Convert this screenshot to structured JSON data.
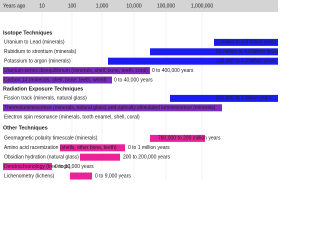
{
  "axis": {
    "title": "Years ago",
    "labels": [
      "10",
      "100",
      "1,000",
      "10,000",
      "100,000",
      "1,000,000"
    ]
  },
  "sections": [
    {
      "title": "Isotope Techniques",
      "rows": [
        {
          "label": "Uranium to Lead (minerals)",
          "range": "1 million to 4.5 billion years",
          "color": "#1c1cf0"
        },
        {
          "label": "Rubidium to strontium (minerals)",
          "range": "60 million to 4.5 billion years",
          "color": "#1c1cf0"
        },
        {
          "label": "Potassium to argon (minerals)",
          "range": "100,000 to 4.5 billion years",
          "color": "#1c1cf0"
        },
        {
          "label": "Uranium-series disequilibrium (minerals, shell, bone, teeth, coral)",
          "range": "0 to 400,000 years",
          "color": "#7a2cc0"
        },
        {
          "label": "Carbon 14 (minerals, shell, bone, teeth, wood)",
          "range": "0 to 40,000 years",
          "color": "#7a2cc0"
        }
      ]
    },
    {
      "title": "Radiation Exposure Techniques",
      "rows": [
        {
          "label": "Fission track (minerals, natural glass)",
          "range": "500,000 to 1 billion years",
          "color": "#1c1cf0"
        },
        {
          "label": "Thermoluminescence (minerals, natural glass) and optically stimulated luminescence (minerals)",
          "color": "#7a2cc0"
        },
        {
          "label": "Electron spin resonance (minerals, tooth enamel, shell, coral)"
        }
      ]
    },
    {
      "title": "Other Techniques",
      "rows": [
        {
          "label": "Geomagnetic polarity timescale (minerals)",
          "range": "780,000 to 200 million years",
          "color": "#e8239a"
        },
        {
          "label": "Amino acid racemization (shells, other bone, teeth)",
          "range": "0 to 1 million years",
          "color": "#e8239a"
        },
        {
          "label": "Obsidian hydration (natural glass)",
          "range": "200 to 200,000 years",
          "color": "#e8239a"
        },
        {
          "label": "Dendrochronology (tree rings)",
          "range": "0 to 10,000 years",
          "color": "#e8239a"
        },
        {
          "label": "Lichenometry (lichens)",
          "range": "0 to 9,000 years",
          "color": "#e8239a"
        }
      ]
    }
  ]
}
